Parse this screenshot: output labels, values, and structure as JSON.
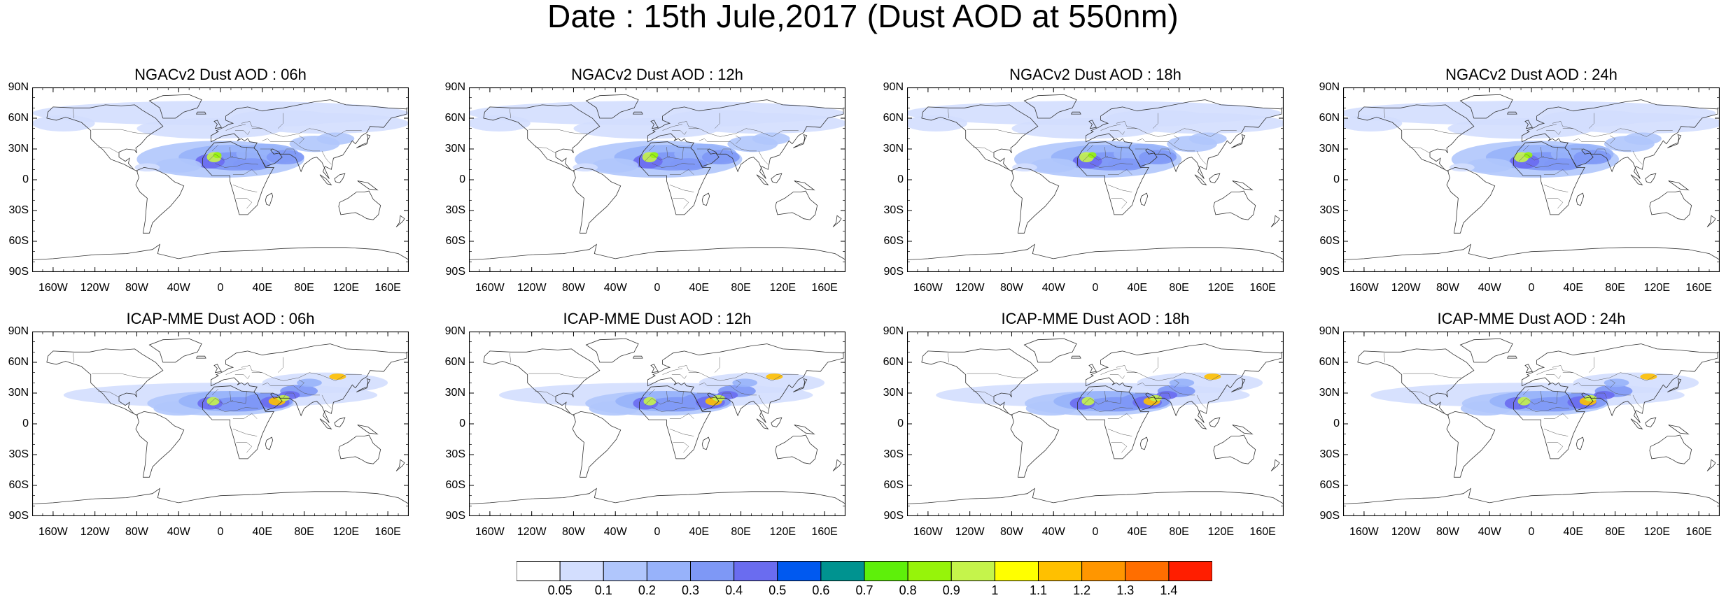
{
  "figure": {
    "title": "Date : 15th Jule,2017 (Dust AOD at 550nm)"
  },
  "panels": [
    {
      "title": "NGACv2 Dust AOD : 06h",
      "model": "NGACv2",
      "lead": "06h"
    },
    {
      "title": "NGACv2 Dust AOD : 12h",
      "model": "NGACv2",
      "lead": "12h"
    },
    {
      "title": "NGACv2 Dust AOD : 18h",
      "model": "NGACv2",
      "lead": "18h"
    },
    {
      "title": "NGACv2 Dust AOD : 24h",
      "model": "NGACv2",
      "lead": "24h"
    },
    {
      "title": "ICAP-MME Dust AOD : 06h",
      "model": "ICAP-MME",
      "lead": "06h"
    },
    {
      "title": "ICAP-MME Dust AOD : 12h",
      "model": "ICAP-MME",
      "lead": "12h"
    },
    {
      "title": "ICAP-MME Dust AOD : 18h",
      "model": "ICAP-MME",
      "lead": "18h"
    },
    {
      "title": "ICAP-MME Dust AOD : 24h",
      "model": "ICAP-MME",
      "lead": "24h"
    }
  ],
  "axes": {
    "lat_labels": [
      "90N",
      "60N",
      "30N",
      "0",
      "30S",
      "60S",
      "90S"
    ],
    "lon_labels": [
      "160W",
      "120W",
      "80W",
      "40W",
      "0",
      "40E",
      "80E",
      "120E",
      "160E"
    ]
  },
  "colorbar": {
    "labels": [
      "0.05",
      "0.1",
      "0.2",
      "0.3",
      "0.4",
      "0.5",
      "0.6",
      "0.7",
      "0.8",
      "0.9",
      "1",
      "1.1",
      "1.2",
      "1.3",
      "1.4"
    ],
    "colors": [
      "#ffffff",
      "#d3defe",
      "#b0c6fc",
      "#97b2fa",
      "#7e98f6",
      "#6a6cf0",
      "#0059f0",
      "#009390",
      "#5ef00a",
      "#96f40a",
      "#c5f44b",
      "#ffff00",
      "#ffc000",
      "#ff9600",
      "#ff6e00",
      "#ff1e00"
    ]
  }
}
